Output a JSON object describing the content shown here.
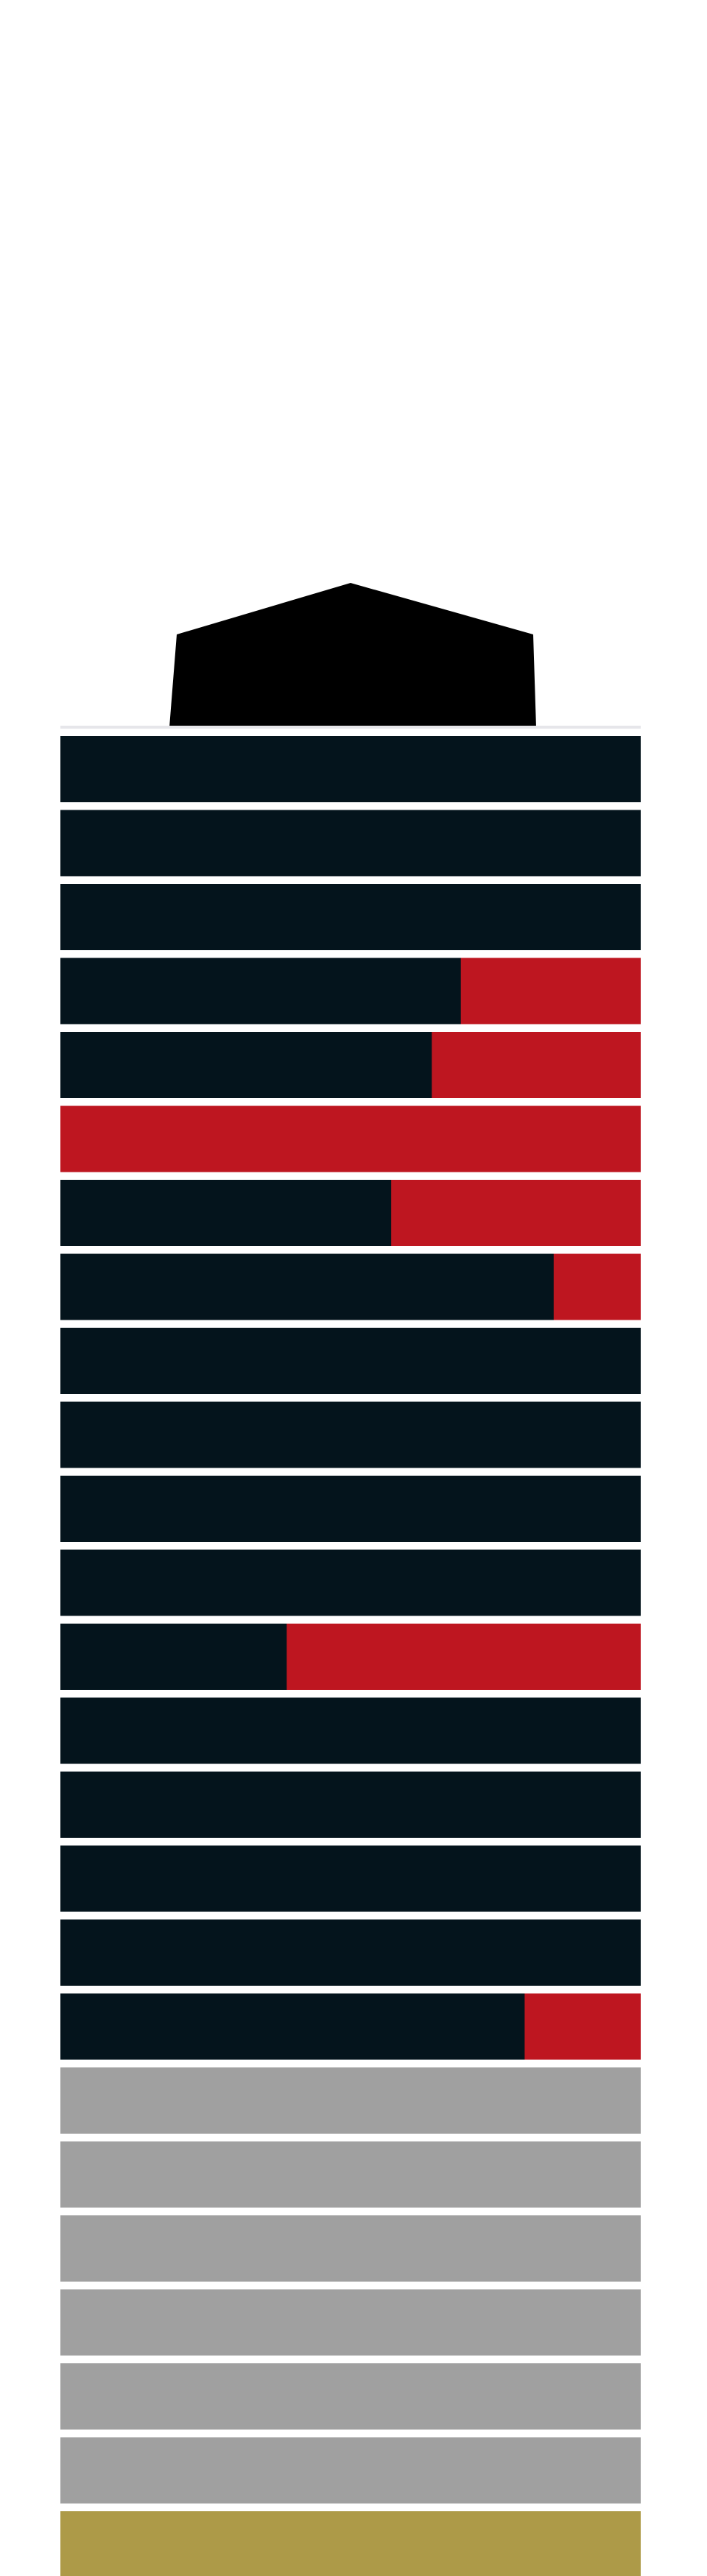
{
  "diagram": {
    "type": "stacked-floor-tower",
    "colors": {
      "background": "#ffffff",
      "roof": "#000000",
      "floor_dark": "#04141c",
      "floor_highlight": "#be1620",
      "floor_gray": "#a0a0a0",
      "floor_base": "#ad9a48",
      "separator": "#e6e6ea"
    },
    "roof": {
      "shape": "pentagon"
    },
    "floors_top_to_bottom": [
      {
        "style": "dark",
        "highlight_fraction": 0
      },
      {
        "style": "dark",
        "highlight_fraction": 0
      },
      {
        "style": "dark",
        "highlight_fraction": 0
      },
      {
        "style": "dark",
        "highlight_fraction": 0.31
      },
      {
        "style": "dark",
        "highlight_fraction": 0.36
      },
      {
        "style": "dark",
        "highlight_fraction": 1.0
      },
      {
        "style": "dark",
        "highlight_fraction": 0.43
      },
      {
        "style": "dark",
        "highlight_fraction": 0.15
      },
      {
        "style": "dark",
        "highlight_fraction": 0
      },
      {
        "style": "dark",
        "highlight_fraction": 0
      },
      {
        "style": "dark",
        "highlight_fraction": 0
      },
      {
        "style": "dark",
        "highlight_fraction": 0
      },
      {
        "style": "dark",
        "highlight_fraction": 0.61
      },
      {
        "style": "dark",
        "highlight_fraction": 0
      },
      {
        "style": "dark",
        "highlight_fraction": 0
      },
      {
        "style": "dark",
        "highlight_fraction": 0
      },
      {
        "style": "dark",
        "highlight_fraction": 0
      },
      {
        "style": "dark",
        "highlight_fraction": 0.2
      },
      {
        "style": "gray",
        "highlight_fraction": 0
      },
      {
        "style": "gray",
        "highlight_fraction": 0
      },
      {
        "style": "gray",
        "highlight_fraction": 0
      },
      {
        "style": "gray",
        "highlight_fraction": 0
      },
      {
        "style": "gray",
        "highlight_fraction": 0
      },
      {
        "style": "gray",
        "highlight_fraction": 0
      },
      {
        "style": "base",
        "highlight_fraction": 0
      }
    ]
  }
}
